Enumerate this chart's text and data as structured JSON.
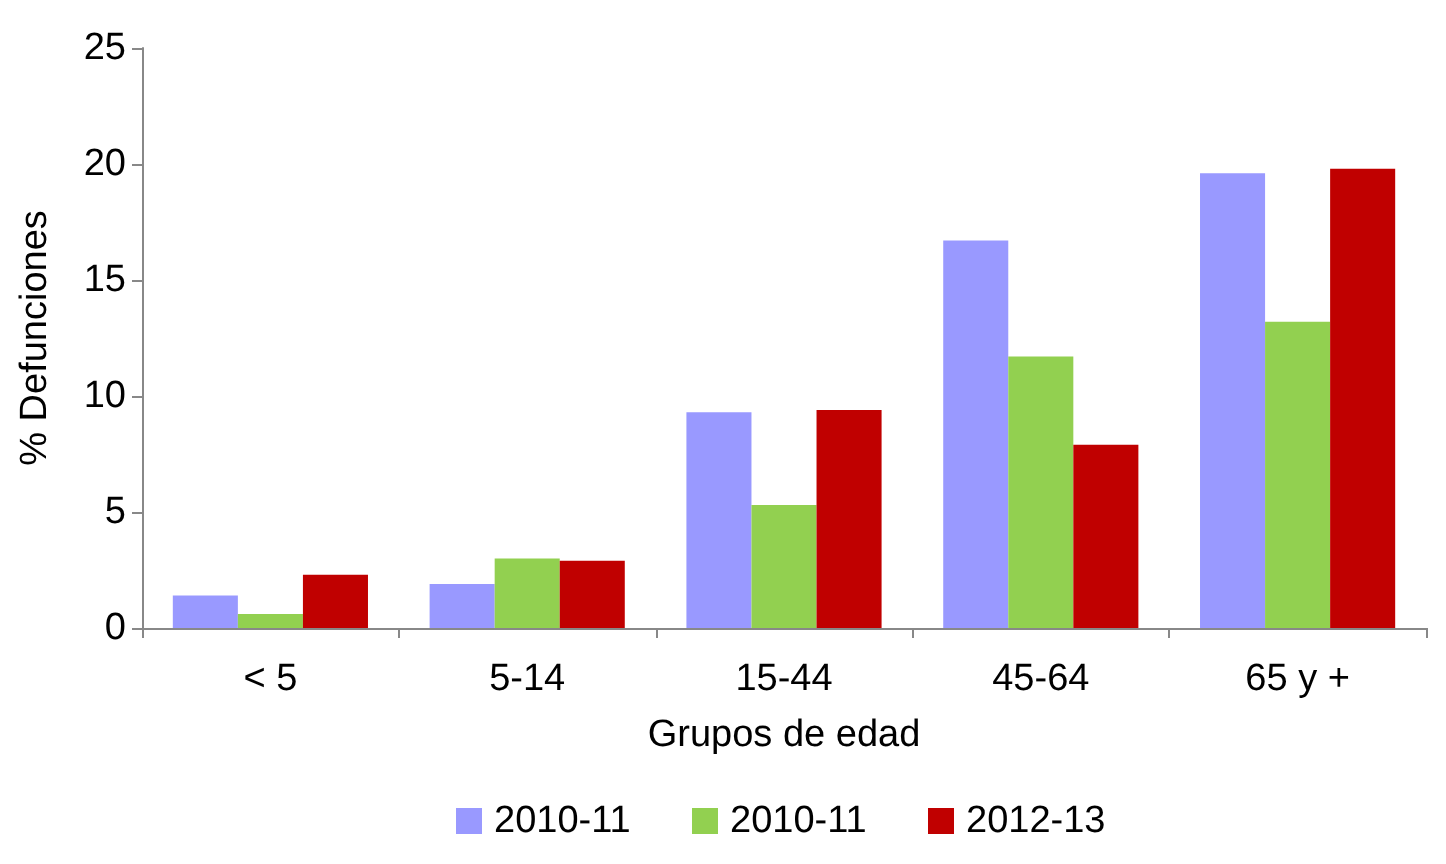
{
  "chart_data": {
    "type": "bar",
    "xlabel": "Grupos de edad",
    "ylabel": "% Defunciones",
    "categories": [
      "< 5",
      "5-14",
      "15-44",
      "45-64",
      "65 y +"
    ],
    "series": [
      {
        "name": "2010-11",
        "color": "#9999ff",
        "values": [
          1.4,
          1.9,
          9.3,
          16.7,
          19.6
        ]
      },
      {
        "name": "2010-11",
        "color": "#92d050",
        "values": [
          0.6,
          3.0,
          5.3,
          11.7,
          13.2
        ]
      },
      {
        "name": "2012-13",
        "color": "#c00000",
        "values": [
          2.3,
          2.9,
          9.4,
          7.9,
          19.8
        ]
      }
    ],
    "ylim": [
      0,
      25
    ],
    "yticks": [
      0,
      5,
      10,
      15,
      20,
      25
    ],
    "grid": false,
    "legend": "bottom"
  }
}
